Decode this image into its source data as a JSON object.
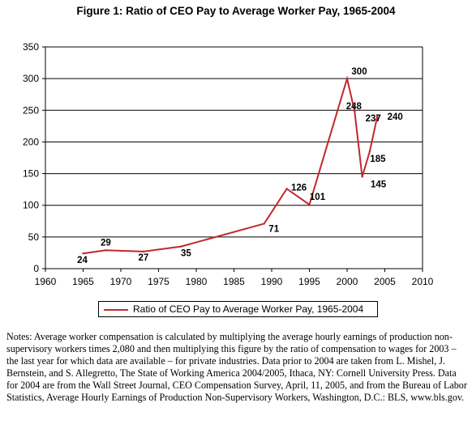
{
  "chart_data": {
    "type": "line",
    "title": "Figure 1: Ratio of CEO Pay to Average Worker Pay, 1965-2004",
    "xlabel": "",
    "ylabel": "",
    "xlim": [
      1960,
      2010
    ],
    "ylim": [
      0,
      350
    ],
    "xticks": [
      "1960",
      "1965",
      "1970",
      "1975",
      "1980",
      "1985",
      "1990",
      "1995",
      "2000",
      "2005",
      "2010"
    ],
    "yticks": [
      "0",
      "50",
      "100",
      "150",
      "200",
      "250",
      "300",
      "350"
    ],
    "grid": "horizontal",
    "legend_position": "bottom",
    "color": "#c0282d",
    "series": [
      {
        "name": "Ratio of CEO Pay to Average Worker Pay, 1965-2004",
        "points": [
          {
            "x": 1965,
            "y": 24,
            "label": "24"
          },
          {
            "x": 1968,
            "y": 29,
            "label": "29"
          },
          {
            "x": 1973,
            "y": 27,
            "label": "27"
          },
          {
            "x": 1978,
            "y": 35,
            "label": "35"
          },
          {
            "x": 1989,
            "y": 71,
            "label": "71"
          },
          {
            "x": 1992,
            "y": 126,
            "label": "126"
          },
          {
            "x": 1995,
            "y": 101,
            "label": "101"
          },
          {
            "x": 2000,
            "y": 300,
            "label": "300"
          },
          {
            "x": 2001,
            "y": 248,
            "label": "248"
          },
          {
            "x": 2002,
            "y": 145,
            "label": "145"
          },
          {
            "x": 2003,
            "y": 185,
            "label": "185"
          },
          {
            "x": 2004,
            "y": 240,
            "label": "240"
          }
        ]
      }
    ],
    "extra_labels": [
      {
        "text": "237"
      }
    ]
  },
  "notes": "Notes: Average worker compensation is calculated by multiplying the average hourly earnings of production non-supervisory workers times 2,080 and then multiplying this figure by the ratio of compensation to wages for 2003 – the last year for which data are available – for private industries. Data prior to 2004 are taken from L. Mishel, J. Bernstein, and S. Allegretto, The State of Working America 2004/2005, Ithaca, NY: Cornell University Press. Data for 2004 are from the Wall Street Journal, CEO Compensation Survey, April, 11, 2005, and from the Bureau of Labor Statistics, Average Hourly Earnings of Production Non-Supervisory Workers, Washington, D.C.: BLS, www.bls.gov."
}
